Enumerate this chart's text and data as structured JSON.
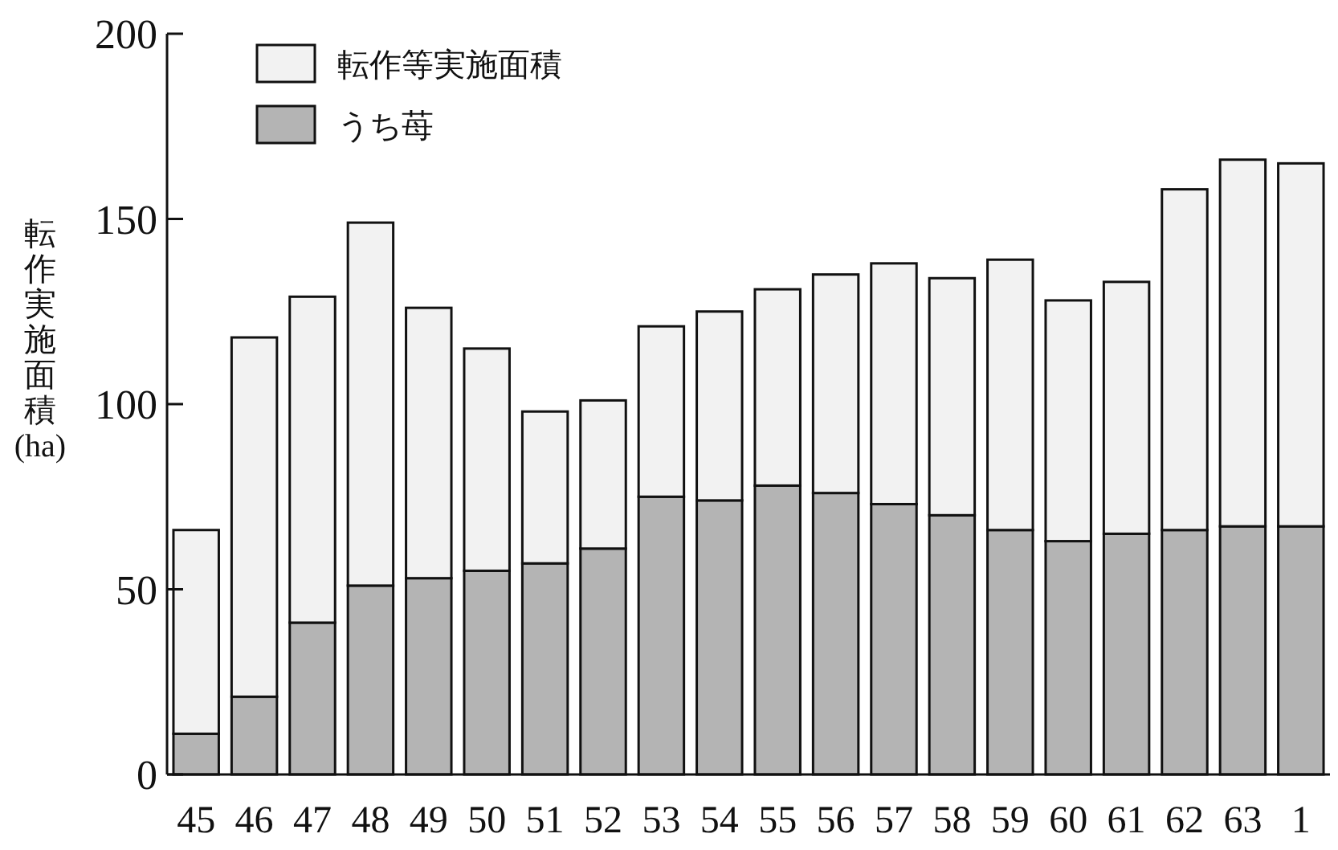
{
  "chart_data": {
    "type": "bar",
    "stacked": true,
    "ylabel": "転作実施面積(ha)",
    "categories": [
      "45",
      "46",
      "47",
      "48",
      "49",
      "50",
      "51",
      "52",
      "53",
      "54",
      "55",
      "56",
      "57",
      "58",
      "59",
      "60",
      "61",
      "62",
      "63",
      "1"
    ],
    "series": [
      {
        "name": "うち苺",
        "color": "#b4b4b4",
        "values": [
          11,
          21,
          41,
          51,
          53,
          55,
          57,
          61,
          75,
          74,
          78,
          76,
          73,
          70,
          66,
          63,
          65,
          66,
          67,
          67
        ]
      },
      {
        "name": "転作等実施面積",
        "color": "#f2f2f2",
        "values": [
          55,
          97,
          88,
          98,
          73,
          60,
          41,
          40,
          46,
          51,
          53,
          59,
          65,
          64,
          73,
          65,
          68,
          92,
          99,
          98
        ]
      }
    ],
    "ylim": [
      0,
      200
    ],
    "yticks": [
      0,
      50,
      100,
      150,
      200
    ],
    "legend": "top left"
  }
}
